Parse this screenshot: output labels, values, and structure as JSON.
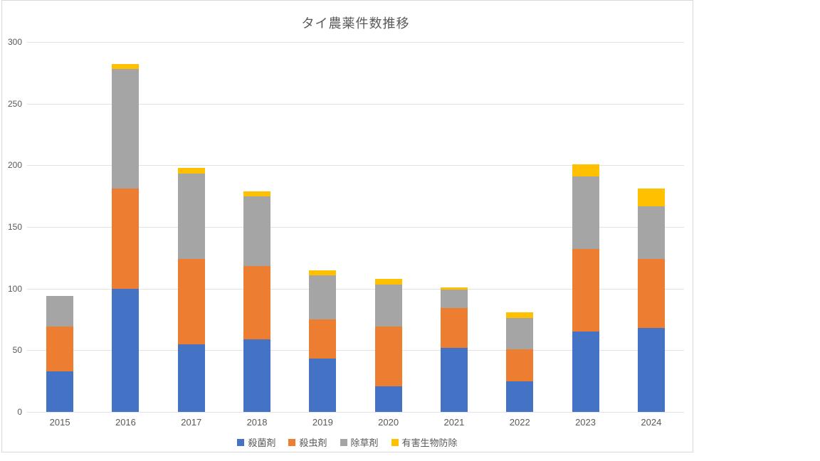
{
  "chart_data": {
    "type": "bar",
    "stacked": true,
    "title": "タイ農薬件数推移",
    "xlabel": "",
    "ylabel": "",
    "categories": [
      "2015",
      "2016",
      "2017",
      "2018",
      "2019",
      "2020",
      "2021",
      "2022",
      "2023",
      "2024"
    ],
    "series": [
      {
        "name": "殺菌剤",
        "color": "#4472C4",
        "values": [
          33,
          100,
          55,
          59,
          43,
          21,
          52,
          25,
          65,
          68
        ]
      },
      {
        "name": "殺虫剤",
        "color": "#ED7D31",
        "values": [
          36,
          81,
          69,
          59,
          32,
          48,
          32,
          26,
          67,
          56
        ]
      },
      {
        "name": "除草剤",
        "color": "#A5A5A5",
        "values": [
          25,
          97,
          69,
          57,
          36,
          34,
          15,
          25,
          59,
          43
        ]
      },
      {
        "name": "有害生物防除",
        "color": "#FFC000",
        "values": [
          0,
          4,
          5,
          4,
          4,
          5,
          2,
          5,
          10,
          14
        ]
      }
    ],
    "totals": [
      94,
      282,
      198,
      179,
      115,
      108,
      101,
      81,
      201,
      181
    ],
    "ylim": [
      0,
      300
    ],
    "ytick_interval": 50,
    "yticks": [
      "0",
      "50",
      "100",
      "150",
      "200",
      "250",
      "300"
    ],
    "grid": true,
    "legend_position": "bottom"
  },
  "style": {
    "text_color": "#595959",
    "gridline_color": "#e2e2e2",
    "frame_border_color": "#d9d9d9",
    "background": "#ffffff"
  }
}
